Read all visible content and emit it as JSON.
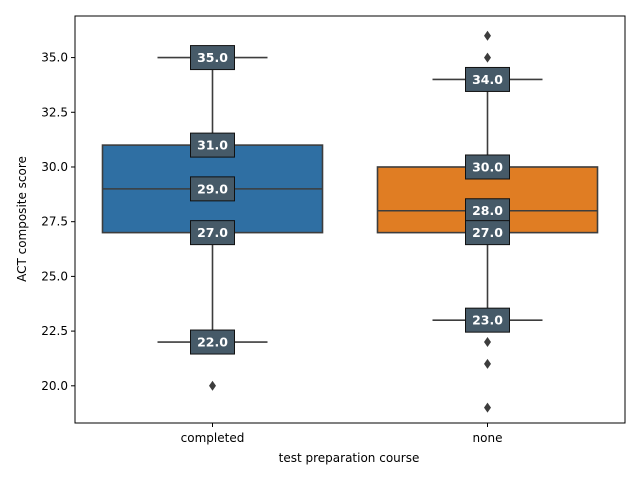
{
  "chart_data": {
    "type": "box",
    "title": "",
    "xlabel": "test preparation course",
    "ylabel": "ACT composite score",
    "ylim": [
      18.3,
      36.9
    ],
    "yticks": [
      "20.0",
      "22.5",
      "25.0",
      "27.5",
      "30.0",
      "32.5",
      "35.0"
    ],
    "grid": false,
    "categories": [
      "completed",
      "none"
    ],
    "series": [
      {
        "category": "completed",
        "color": "#2f6fa3",
        "whisker_low": 22.0,
        "q1": 27.0,
        "median": 29.0,
        "q3": 31.0,
        "whisker_high": 35.0,
        "outliers": [
          20.0
        ],
        "annotations": [
          {
            "value": 35.0,
            "label": "35.0"
          },
          {
            "value": 31.0,
            "label": "31.0"
          },
          {
            "value": 29.0,
            "label": "29.0"
          },
          {
            "value": 27.0,
            "label": "27.0"
          },
          {
            "value": 22.0,
            "label": "22.0"
          }
        ]
      },
      {
        "category": "none",
        "color": "#e07d23",
        "whisker_low": 23.0,
        "q1": 27.0,
        "median": 28.0,
        "q3": 30.0,
        "whisker_high": 34.0,
        "outliers": [
          36.0,
          35.0,
          22.0,
          21.0,
          19.0
        ],
        "annotations": [
          {
            "value": 34.0,
            "label": "34.0"
          },
          {
            "value": 30.0,
            "label": "30.0"
          },
          {
            "value": 28.0,
            "label": "28.0"
          },
          {
            "value": 27.0,
            "label": "27.0"
          },
          {
            "value": 23.0,
            "label": "23.0"
          }
        ]
      }
    ],
    "badge_color": "#465a68",
    "line_color": "#3d3d3d"
  }
}
